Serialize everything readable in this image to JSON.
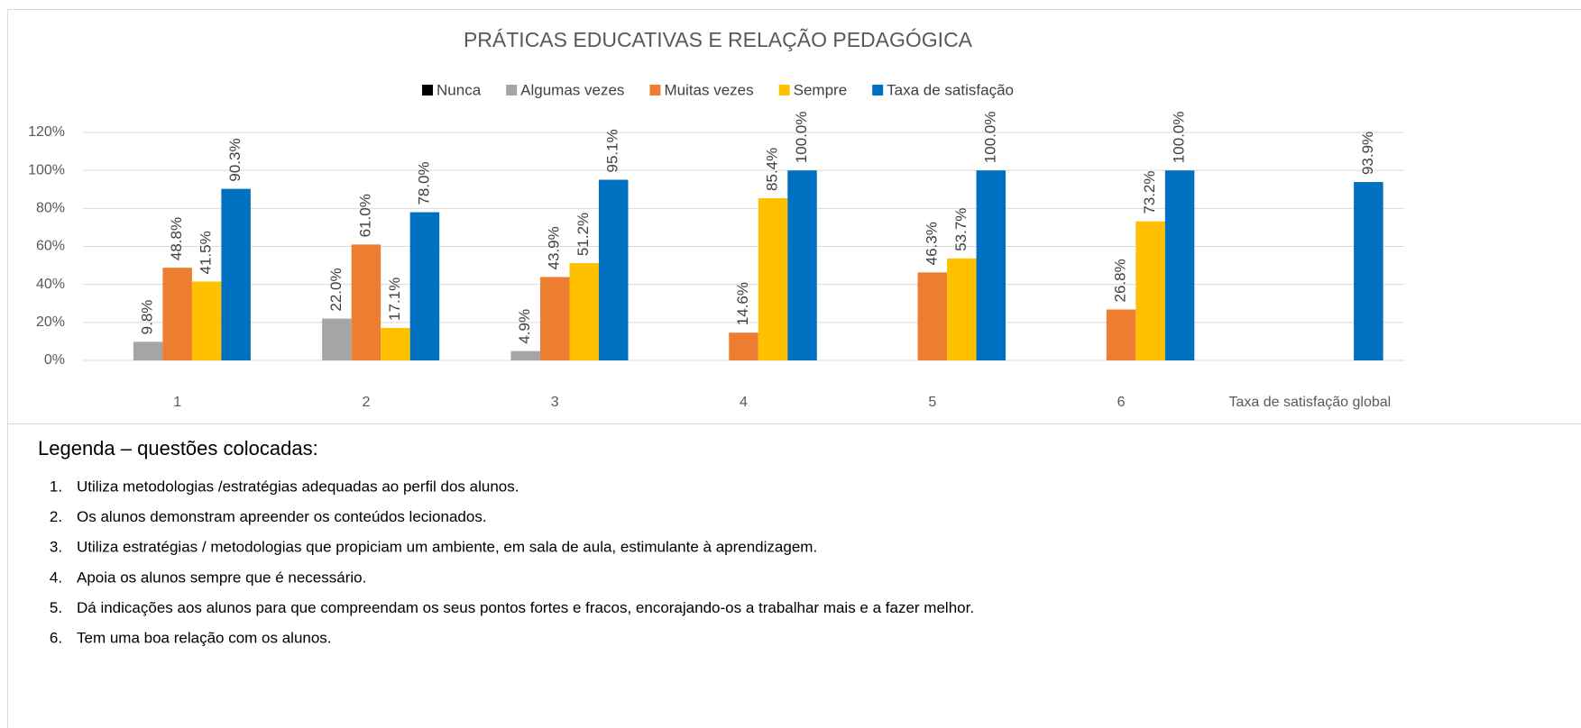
{
  "chart_data": {
    "type": "bar",
    "title": "PRÁTICAS EDUCATIVAS E RELAÇÃO PEDAGÓGICA",
    "categories": [
      "1",
      "2",
      "3",
      "4",
      "5",
      "6",
      "Taxa de satisfação global"
    ],
    "series": [
      {
        "name": "Nunca",
        "color": "#000000",
        "values": [
          null,
          null,
          null,
          null,
          null,
          null,
          null
        ],
        "value_labels": [
          null,
          null,
          null,
          null,
          null,
          null,
          null
        ]
      },
      {
        "name": "Algumas vezes",
        "color": "#a5a5a5",
        "values": [
          9.8,
          22.0,
          4.9,
          null,
          null,
          null,
          null
        ],
        "value_labels": [
          "9.8%",
          "22.0%",
          "4.9%",
          null,
          null,
          null,
          null
        ]
      },
      {
        "name": "Muitas vezes",
        "color": "#ed7d31",
        "values": [
          48.8,
          61.0,
          43.9,
          14.6,
          46.3,
          26.8,
          null
        ],
        "value_labels": [
          "48.8%",
          "61.0%",
          "43.9%",
          "14.6%",
          "46.3%",
          "26.8%",
          null
        ]
      },
      {
        "name": "Sempre",
        "color": "#ffc000",
        "values": [
          41.5,
          17.1,
          51.2,
          85.4,
          53.7,
          73.2,
          null
        ],
        "value_labels": [
          "41.5%",
          "17.1%",
          "51.2%",
          "85.4%",
          "53.7%",
          "73.2%",
          null
        ]
      },
      {
        "name": "Taxa de satisfação",
        "color": "#0070c0",
        "values": [
          90.3,
          78.0,
          95.1,
          100.0,
          100.0,
          100.0,
          93.9
        ],
        "value_labels": [
          "90.3%",
          "78.0%",
          "95.1%",
          "100.0%",
          "100.0%",
          "100.0%",
          "93.9%"
        ]
      }
    ],
    "ylim": [
      0,
      120
    ],
    "yticks": [
      {
        "value": 0,
        "label": "0%"
      },
      {
        "value": 20,
        "label": "20%"
      },
      {
        "value": 40,
        "label": "40%"
      },
      {
        "value": 60,
        "label": "60%"
      },
      {
        "value": 80,
        "label": "80%"
      },
      {
        "value": 100,
        "label": "100%"
      },
      {
        "value": 120,
        "label": "120%"
      }
    ],
    "grid": true,
    "legend": "top"
  },
  "legend_list": {
    "heading": "Legenda – questões colocadas:",
    "items": [
      {
        "number": "1.",
        "text": "Utiliza metodologias /estratégias adequadas ao perfil dos alunos."
      },
      {
        "number": "2.",
        "text": "Os alunos demonstram apreender os conteúdos lecionados."
      },
      {
        "number": "3.",
        "text": "Utiliza estratégias / metodologias que propiciam um ambiente, em sala de aula, estimulante à aprendizagem."
      },
      {
        "number": "4.",
        "text": "Apoia os alunos sempre que é necessário."
      },
      {
        "number": "5.",
        "text": "Dá indicações aos alunos para que compreendam os seus pontos fortes e fracos, encorajando-os a trabalhar mais e a fazer melhor."
      },
      {
        "number": "6.",
        "text": "Tem uma boa relação com os alunos."
      }
    ]
  }
}
